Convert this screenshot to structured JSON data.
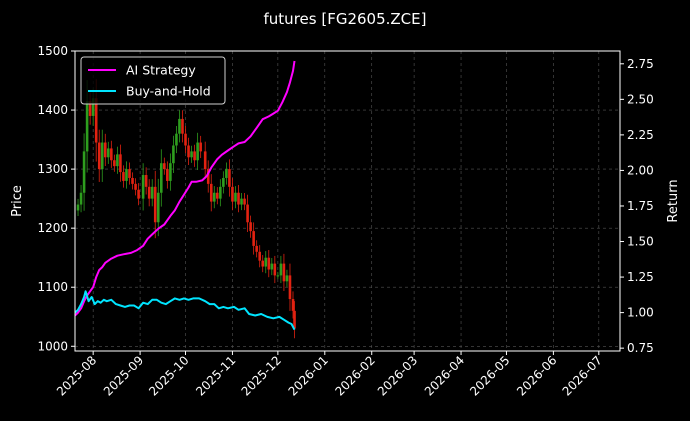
{
  "chart_data": {
    "type": "line",
    "title": "futures [FG2605.ZCE]",
    "ylabel_left": "Price",
    "ylabel_right": "Return",
    "xlim": [
      "2025-07-20",
      "2026-07-15"
    ],
    "ylim_left": [
      992,
      1500
    ],
    "ylim_right": [
      0.73,
      2.84
    ],
    "x_ticks": [
      "2025-08",
      "2025-09",
      "2025-10",
      "2025-11",
      "2025-12",
      "2026-01",
      "2026-02",
      "2026-03",
      "2026-04",
      "2026-05",
      "2026-06",
      "2026-07"
    ],
    "x_tick_dates": [
      "2025-08-01",
      "2025-09-01",
      "2025-10-01",
      "2025-11-01",
      "2025-12-01",
      "2026-01-01",
      "2026-02-01",
      "2026-03-01",
      "2026-04-01",
      "2026-05-01",
      "2026-06-01",
      "2026-07-01"
    ],
    "y_ticks_left": [
      1000,
      1100,
      1200,
      1300,
      1400,
      1500
    ],
    "y_ticks_right": [
      0.75,
      1.0,
      1.25,
      1.5,
      1.75,
      2.0,
      2.25,
      2.5,
      2.75
    ],
    "grid": true,
    "legend_position": "top-left",
    "series": [
      {
        "name": "AI Strategy",
        "axis": "right",
        "color": "#ff00ff",
        "points": [
          [
            "2025-07-20",
            0.98
          ],
          [
            "2025-07-22",
            1.0
          ],
          [
            "2025-07-24",
            1.03
          ],
          [
            "2025-07-26",
            1.08
          ],
          [
            "2025-07-28",
            1.12
          ],
          [
            "2025-07-30",
            1.15
          ],
          [
            "2025-08-01",
            1.18
          ],
          [
            "2025-08-03",
            1.25
          ],
          [
            "2025-08-05",
            1.3
          ],
          [
            "2025-08-07",
            1.32
          ],
          [
            "2025-08-09",
            1.35
          ],
          [
            "2025-08-13",
            1.38
          ],
          [
            "2025-08-17",
            1.4
          ],
          [
            "2025-08-21",
            1.41
          ],
          [
            "2025-08-26",
            1.42
          ],
          [
            "2025-08-30",
            1.44
          ],
          [
            "2025-09-03",
            1.47
          ],
          [
            "2025-09-06",
            1.52
          ],
          [
            "2025-09-09",
            1.55
          ],
          [
            "2025-09-13",
            1.59
          ],
          [
            "2025-09-17",
            1.62
          ],
          [
            "2025-09-21",
            1.68
          ],
          [
            "2025-09-24",
            1.72
          ],
          [
            "2025-09-27",
            1.78
          ],
          [
            "2025-09-30",
            1.83
          ],
          [
            "2025-10-03",
            1.88
          ],
          [
            "2025-10-05",
            1.92
          ],
          [
            "2025-10-08",
            1.92
          ],
          [
            "2025-10-12",
            1.93
          ],
          [
            "2025-10-15",
            1.96
          ],
          [
            "2025-10-18",
            2.02
          ],
          [
            "2025-10-22",
            2.08
          ],
          [
            "2025-10-25",
            2.11
          ],
          [
            "2025-10-29",
            2.14
          ],
          [
            "2025-11-02",
            2.17
          ],
          [
            "2025-11-05",
            2.19
          ],
          [
            "2025-11-09",
            2.2
          ],
          [
            "2025-11-13",
            2.24
          ],
          [
            "2025-11-17",
            2.3
          ],
          [
            "2025-11-21",
            2.36
          ],
          [
            "2025-11-25",
            2.38
          ],
          [
            "2025-11-28",
            2.4
          ],
          [
            "2025-12-01",
            2.42
          ],
          [
            "2025-12-04",
            2.48
          ],
          [
            "2025-12-07",
            2.55
          ],
          [
            "2025-12-09",
            2.62
          ],
          [
            "2025-12-11",
            2.7
          ],
          [
            "2025-12-12",
            2.77
          ]
        ]
      },
      {
        "name": "Buy-and-Hold",
        "axis": "right",
        "color": "#00e5ff",
        "points": [
          [
            "2025-07-20",
            1.0
          ],
          [
            "2025-07-22",
            1.02
          ],
          [
            "2025-07-24",
            1.06
          ],
          [
            "2025-07-26",
            1.11
          ],
          [
            "2025-07-27",
            1.15
          ],
          [
            "2025-07-29",
            1.08
          ],
          [
            "2025-07-31",
            1.11
          ],
          [
            "2025-08-02",
            1.06
          ],
          [
            "2025-08-04",
            1.08
          ],
          [
            "2025-08-06",
            1.07
          ],
          [
            "2025-08-08",
            1.09
          ],
          [
            "2025-08-10",
            1.08
          ],
          [
            "2025-08-13",
            1.09
          ],
          [
            "2025-08-16",
            1.06
          ],
          [
            "2025-08-19",
            1.05
          ],
          [
            "2025-08-22",
            1.04
          ],
          [
            "2025-08-25",
            1.05
          ],
          [
            "2025-08-28",
            1.05
          ],
          [
            "2025-08-31",
            1.03
          ],
          [
            "2025-09-03",
            1.07
          ],
          [
            "2025-09-06",
            1.06
          ],
          [
            "2025-09-09",
            1.09
          ],
          [
            "2025-09-12",
            1.09
          ],
          [
            "2025-09-15",
            1.07
          ],
          [
            "2025-09-18",
            1.06
          ],
          [
            "2025-09-21",
            1.08
          ],
          [
            "2025-09-24",
            1.1
          ],
          [
            "2025-09-27",
            1.09
          ],
          [
            "2025-09-30",
            1.1
          ],
          [
            "2025-10-03",
            1.09
          ],
          [
            "2025-10-06",
            1.1
          ],
          [
            "2025-10-10",
            1.1
          ],
          [
            "2025-10-14",
            1.08
          ],
          [
            "2025-10-17",
            1.06
          ],
          [
            "2025-10-20",
            1.06
          ],
          [
            "2025-10-23",
            1.03
          ],
          [
            "2025-10-26",
            1.04
          ],
          [
            "2025-10-29",
            1.03
          ],
          [
            "2025-11-02",
            1.04
          ],
          [
            "2025-11-05",
            1.02
          ],
          [
            "2025-11-09",
            1.03
          ],
          [
            "2025-11-12",
            0.99
          ],
          [
            "2025-11-16",
            0.98
          ],
          [
            "2025-11-20",
            0.99
          ],
          [
            "2025-11-24",
            0.97
          ],
          [
            "2025-11-28",
            0.96
          ],
          [
            "2025-12-02",
            0.97
          ],
          [
            "2025-12-05",
            0.95
          ],
          [
            "2025-12-08",
            0.93
          ],
          [
            "2025-12-10",
            0.92
          ],
          [
            "2025-12-12",
            0.88
          ]
        ]
      }
    ],
    "candles": {
      "axis": "left",
      "up_color": "#2e9e1e",
      "down_color": "#e22211",
      "points": [
        [
          "2025-07-20",
          1230
        ],
        [
          "2025-07-22",
          1240
        ],
        [
          "2025-07-24",
          1260
        ],
        [
          "2025-07-26",
          1330
        ],
        [
          "2025-07-28",
          1415
        ],
        [
          "2025-07-30",
          1390
        ],
        [
          "2025-08-01",
          1420
        ],
        [
          "2025-08-03",
          1345
        ],
        [
          "2025-08-05",
          1300
        ],
        [
          "2025-08-07",
          1345
        ],
        [
          "2025-08-09",
          1320
        ],
        [
          "2025-08-11",
          1335
        ],
        [
          "2025-08-13",
          1315
        ],
        [
          "2025-08-15",
          1305
        ],
        [
          "2025-08-17",
          1325
        ],
        [
          "2025-08-19",
          1295
        ],
        [
          "2025-08-21",
          1280
        ],
        [
          "2025-08-23",
          1300
        ],
        [
          "2025-08-25",
          1285
        ],
        [
          "2025-08-27",
          1275
        ],
        [
          "2025-08-29",
          1265
        ],
        [
          "2025-08-31",
          1250
        ],
        [
          "2025-09-03",
          1290
        ],
        [
          "2025-09-05",
          1270
        ],
        [
          "2025-09-07",
          1250
        ],
        [
          "2025-09-09",
          1270
        ],
        [
          "2025-09-11",
          1210
        ],
        [
          "2025-09-13",
          1260
        ],
        [
          "2025-09-15",
          1310
        ],
        [
          "2025-09-17",
          1300
        ],
        [
          "2025-09-19",
          1280
        ],
        [
          "2025-09-21",
          1310
        ],
        [
          "2025-09-23",
          1340
        ],
        [
          "2025-09-25",
          1360
        ],
        [
          "2025-09-27",
          1385
        ],
        [
          "2025-09-29",
          1360
        ],
        [
          "2025-10-01",
          1340
        ],
        [
          "2025-10-03",
          1320
        ],
        [
          "2025-10-05",
          1330
        ],
        [
          "2025-10-07",
          1315
        ],
        [
          "2025-10-09",
          1345
        ],
        [
          "2025-10-11",
          1330
        ],
        [
          "2025-10-14",
          1300
        ],
        [
          "2025-10-16",
          1275
        ],
        [
          "2025-10-18",
          1245
        ],
        [
          "2025-10-20",
          1260
        ],
        [
          "2025-10-22",
          1250
        ],
        [
          "2025-10-24",
          1270
        ],
        [
          "2025-10-26",
          1285
        ],
        [
          "2025-10-28",
          1300
        ],
        [
          "2025-10-30",
          1270
        ],
        [
          "2025-11-01",
          1245
        ],
        [
          "2025-11-03",
          1260
        ],
        [
          "2025-11-05",
          1240
        ],
        [
          "2025-11-07",
          1250
        ],
        [
          "2025-11-09",
          1240
        ],
        [
          "2025-11-11",
          1210
        ],
        [
          "2025-11-13",
          1195
        ],
        [
          "2025-11-15",
          1170
        ],
        [
          "2025-11-17",
          1160
        ],
        [
          "2025-11-19",
          1145
        ],
        [
          "2025-11-21",
          1135
        ],
        [
          "2025-11-23",
          1150
        ],
        [
          "2025-11-25",
          1130
        ],
        [
          "2025-11-27",
          1140
        ],
        [
          "2025-11-29",
          1120
        ],
        [
          "2025-12-01",
          1120
        ],
        [
          "2025-12-03",
          1140
        ],
        [
          "2025-12-05",
          1110
        ],
        [
          "2025-12-07",
          1120
        ],
        [
          "2025-12-09",
          1080
        ],
        [
          "2025-12-11",
          1060
        ],
        [
          "2025-12-12",
          1030
        ]
      ]
    }
  }
}
